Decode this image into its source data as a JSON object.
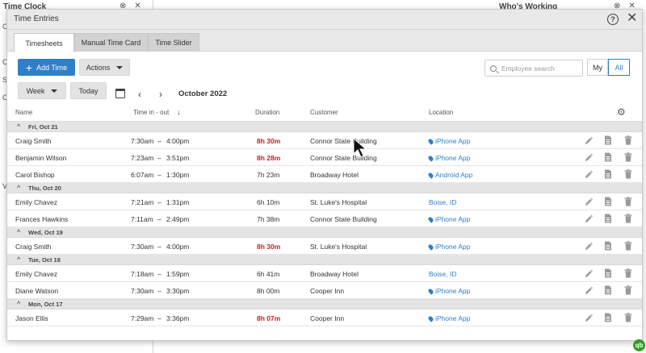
{
  "background": {
    "left_title": "Time Clock",
    "left_letters": [
      "C",
      "",
      "C",
      "S",
      "C",
      "",
      "",
      "",
      "",
      "V",
      "",
      "",
      "",
      ""
    ],
    "right_title": "Who's Working"
  },
  "modal": {
    "title": "Time Entries",
    "help_label": "?",
    "close_label": "✕"
  },
  "tabs": [
    {
      "label": "Timesheets",
      "active": true
    },
    {
      "label": "Manual Time Card",
      "active": false
    },
    {
      "label": "Time Slider",
      "active": false
    }
  ],
  "toolbar": {
    "add_time_label": "Add Time",
    "actions_label": "Actions",
    "search_placeholder": "Employee search",
    "scope_my": "My",
    "scope_all": "All",
    "period_label": "Week",
    "today_label": "Today",
    "month_label": "October 2022"
  },
  "columns": {
    "name": "Name",
    "time": "Time in - out",
    "duration": "Duration",
    "customer": "Customer",
    "location": "Location"
  },
  "groups": [
    {
      "label": "Fri, Oct 21",
      "rows": [
        {
          "name": "Craig Smith",
          "in": "7:30am",
          "sep": "–",
          "out": "4:00pm",
          "duration": "8h 30m",
          "over": true,
          "customer": "Connor State Building",
          "location": "iPhone App",
          "pin": true
        },
        {
          "name": "Benjamin Wilson",
          "in": "7:23am",
          "sep": "–",
          "out": "3:51pm",
          "duration": "8h 28m",
          "over": true,
          "customer": "Connor State Building",
          "location": "iPhone App",
          "pin": true
        },
        {
          "name": "Carol Bishop",
          "in": "6:07am",
          "sep": "–",
          "out": "1:30pm",
          "duration": "7h 23m",
          "over": false,
          "customer": "Broadway Hotel",
          "location": "Android App",
          "pin": true
        }
      ]
    },
    {
      "label": "Thu, Oct 20",
      "rows": [
        {
          "name": "Emily Chavez",
          "in": "7:21am",
          "sep": "–",
          "out": "1:31pm",
          "duration": "6h 10m",
          "over": false,
          "customer": "St. Luke's Hospital",
          "location": "Boise, ID",
          "pin": false
        },
        {
          "name": "Frances Hawkins",
          "in": "7:11am",
          "sep": "–",
          "out": "2:49pm",
          "duration": "7h 38m",
          "over": false,
          "customer": "Connor State Building",
          "location": "iPhone App",
          "pin": true
        }
      ]
    },
    {
      "label": "Wed, Oct 19",
      "rows": [
        {
          "name": "Craig Smith",
          "in": "7:30am",
          "sep": "–",
          "out": "4:00pm",
          "duration": "8h 30m",
          "over": true,
          "customer": "St. Luke's Hospital",
          "location": "iPhone App",
          "pin": true
        }
      ]
    },
    {
      "label": "Tue, Oct 18",
      "rows": [
        {
          "name": "Emily Chavez",
          "in": "7:18am",
          "sep": "–",
          "out": "1:59pm",
          "duration": "6h 41m",
          "over": false,
          "customer": "Broadway Hotel",
          "location": "Boise, ID",
          "pin": false
        },
        {
          "name": "Diane Watson",
          "in": "7:30am",
          "sep": "–",
          "out": "3:30pm",
          "duration": "8h 00m",
          "over": false,
          "customer": "Cooper Inn",
          "location": "iPhone App",
          "pin": true
        }
      ]
    },
    {
      "label": "Mon, Oct 17",
      "rows": [
        {
          "name": "Jason Ellis",
          "in": "7:29am",
          "sep": "–",
          "out": "3:36pm",
          "duration": "8h 07m",
          "over": true,
          "customer": "Cooper Inn",
          "location": "iPhone App",
          "pin": true
        }
      ]
    }
  ],
  "colors": {
    "accent": "#2f7fc8",
    "overtime": "#c41d1d",
    "header_bg": "#e9e9e9",
    "group_bg": "#e4e4e4",
    "brand_logo": "#2ca01c"
  },
  "icons": {
    "row_actions": [
      "pencil-icon",
      "document-icon",
      "trash-icon"
    ],
    "location": "map-pin-icon",
    "settings": "gear-icon",
    "calendar": "calendar-icon",
    "brand": "quickbooks-logo"
  },
  "brand": {
    "logo_text": "qb"
  }
}
